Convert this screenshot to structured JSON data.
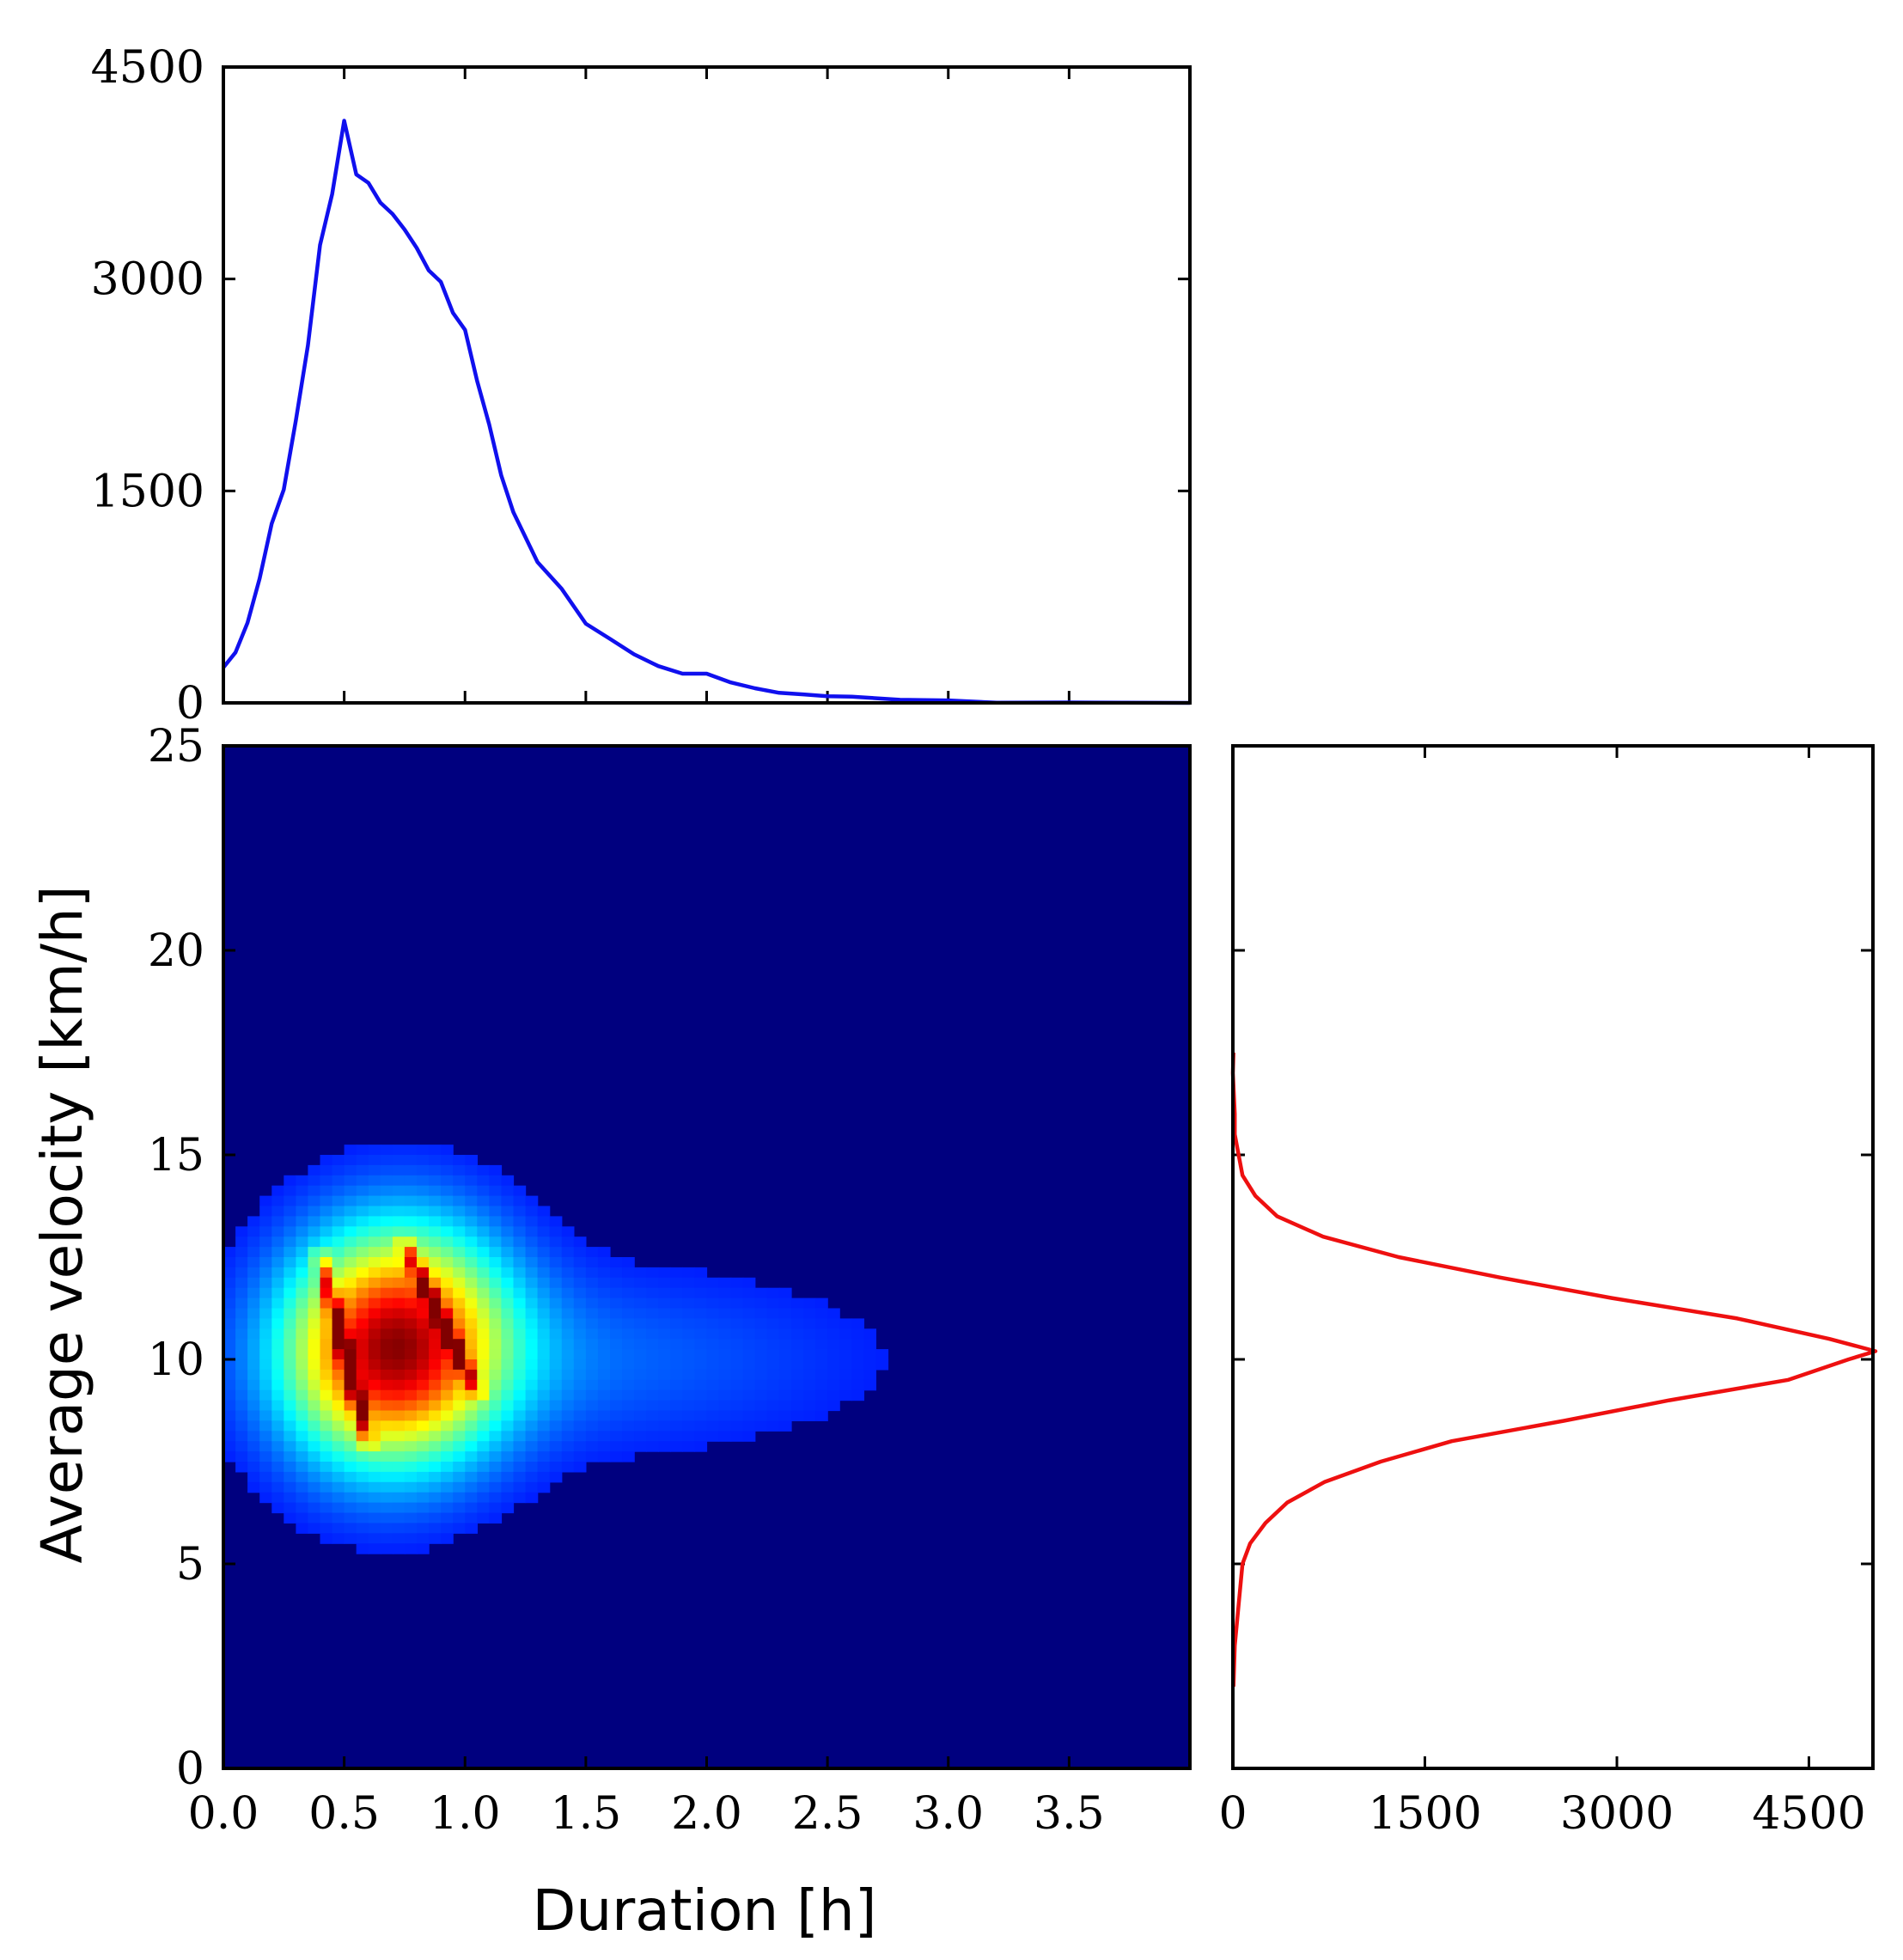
{
  "chart_data": [
    {
      "id": "top-histogram",
      "type": "line",
      "title": "",
      "xlabel": "",
      "ylabel": "",
      "xlim": [
        0,
        4
      ],
      "ylim": [
        0,
        4500
      ],
      "yticks": [
        "0",
        "1500",
        "3000",
        "4500"
      ],
      "xticks": [
        0,
        0.5,
        1.0,
        1.5,
        2.0,
        2.5,
        3.0,
        3.5
      ],
      "grid": false,
      "color": "#1010ee",
      "series": [
        {
          "x": [
            0,
            0.05,
            0.1,
            0.15,
            0.2,
            0.25,
            0.3,
            0.35,
            0.4,
            0.45,
            0.5,
            0.55,
            0.6,
            0.65,
            0.7,
            0.75,
            0.8,
            0.85,
            0.9,
            0.95,
            1.0,
            1.05,
            1.1,
            1.15,
            1.2,
            1.3,
            1.4,
            1.5,
            1.6,
            1.7,
            1.8,
            1.9,
            2.0,
            2.1,
            2.2,
            2.3,
            2.4,
            2.5,
            2.6,
            2.8,
            3.0,
            3.2,
            3.5,
            4.0
          ],
          "y": [
            250,
            360,
            560,
            880,
            1250,
            1550,
            2000,
            2550,
            3200,
            3600,
            4100,
            3780,
            3680,
            3560,
            3420,
            3350,
            3200,
            3100,
            2980,
            2780,
            2600,
            2280,
            1950,
            1650,
            1350,
            1000,
            800,
            560,
            450,
            350,
            260,
            210,
            200,
            145,
            100,
            78,
            60,
            50,
            38,
            22,
            14,
            8,
            3,
            0
          ]
        }
      ]
    },
    {
      "id": "heatmap",
      "type": "heatmap",
      "title": "",
      "xlabel": "Duration [h]",
      "ylabel": "Average velocity [km/h]",
      "xlim": [
        0,
        4
      ],
      "ylim": [
        0,
        25
      ],
      "xticks": [
        "0.0",
        "0.5",
        "1.0",
        "1.5",
        "2.0",
        "2.5",
        "3.0",
        "3.5"
      ],
      "yticks": [
        "0",
        "5",
        "10",
        "15",
        "20",
        "25"
      ],
      "colormap": "jet",
      "background": "#00007f",
      "hotspots": [
        {
          "x": 0.6,
          "y": 10.2,
          "intensity": 0.55
        },
        {
          "x": 0.85,
          "y": 10.5,
          "intensity": 0.45
        },
        {
          "x": 1.4,
          "y": 10.0,
          "intensity": 0.12
        }
      ],
      "ridges": [
        {
          "x0": 0.4,
          "y0": 12.5,
          "x1": 0.6,
          "y1": 8.0,
          "peak": 1.0
        },
        {
          "x0": 0.75,
          "y0": 12.8,
          "x1": 1.05,
          "y1": 9.2,
          "peak": 0.9
        }
      ]
    },
    {
      "id": "right-histogram",
      "type": "line",
      "title": "",
      "xlabel": "",
      "ylabel": "",
      "xlim": [
        0,
        5000
      ],
      "ylim": [
        0,
        25
      ],
      "xticks": [
        "0",
        "1500",
        "3000",
        "4500"
      ],
      "yticks": [
        0,
        5,
        10,
        15,
        20,
        25
      ],
      "grid": false,
      "color": "#ee1010",
      "series": [
        {
          "y": [
            2,
            3,
            4,
            5,
            5.5,
            6,
            6.5,
            7,
            7.5,
            8,
            8.5,
            9,
            9.5,
            10,
            10.2,
            10.5,
            11,
            11.5,
            12,
            12.5,
            13,
            13.5,
            14,
            14.5,
            15,
            15.5,
            16,
            17,
            17.5
          ],
          "x": [
            0,
            20,
            40,
            80,
            130,
            260,
            420,
            720,
            1150,
            1750,
            2550,
            3450,
            4300,
            4850,
            4980,
            4700,
            3900,
            3000,
            2050,
            1300,
            700,
            350,
            170,
            80,
            40,
            20,
            10,
            3,
            0
          ]
        }
      ]
    }
  ]
}
